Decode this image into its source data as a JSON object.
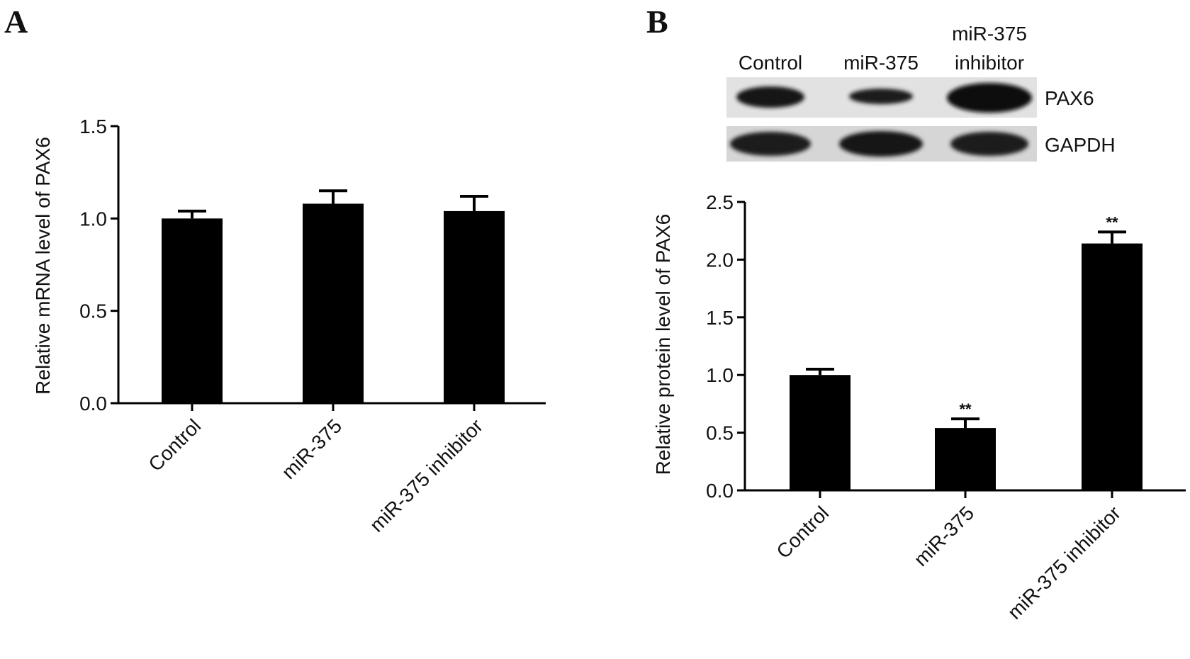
{
  "panels": [
    "A",
    "B"
  ],
  "blot": {
    "lanes": [
      [
        "Control"
      ],
      [
        "miR-375"
      ],
      [
        "miR-375",
        "inhibitor"
      ]
    ],
    "bands": [
      "PAX6",
      "GAPDH"
    ]
  },
  "chart_data": [
    {
      "type": "bar",
      "ylabel": "Relative mRNA level of PAX6",
      "categories": [
        "Control",
        "miR-375",
        "miR-375 inhibitor"
      ],
      "values": [
        1.0,
        1.08,
        1.04
      ],
      "errors": [
        0.04,
        0.07,
        0.08
      ],
      "color": "#000000",
      "ylim": [
        0,
        1.5
      ],
      "yticks": [
        {
          "value": 0,
          "label": "0.0"
        },
        {
          "value": 0.5,
          "label": "0.5"
        },
        {
          "value": 1,
          "label": "1.0"
        },
        {
          "value": 1.5,
          "label": "1.5"
        }
      ],
      "grid": false
    },
    {
      "type": "bar",
      "ylabel": "Relative protein level of PAX6",
      "categories": [
        "Control",
        "miR-375",
        "miR-375 inhibitor"
      ],
      "values": [
        1.0,
        0.54,
        2.14
      ],
      "errors": [
        0.05,
        0.08,
        0.1
      ],
      "color": "#000000",
      "ylim": [
        0,
        2.5
      ],
      "yticks": [
        {
          "value": 0,
          "label": "0.0"
        },
        {
          "value": 0.5,
          "label": "0.5"
        },
        {
          "value": 1,
          "label": "1.0"
        },
        {
          "value": 1.5,
          "label": "1.5"
        },
        {
          "value": 2,
          "label": "2.0"
        },
        {
          "value": 2.5,
          "label": "2.5"
        }
      ],
      "annotations": [
        {
          "category": "miR-375",
          "text": "**"
        },
        {
          "category": "miR-375 inhibitor",
          "text": "**"
        }
      ],
      "grid": false
    }
  ]
}
